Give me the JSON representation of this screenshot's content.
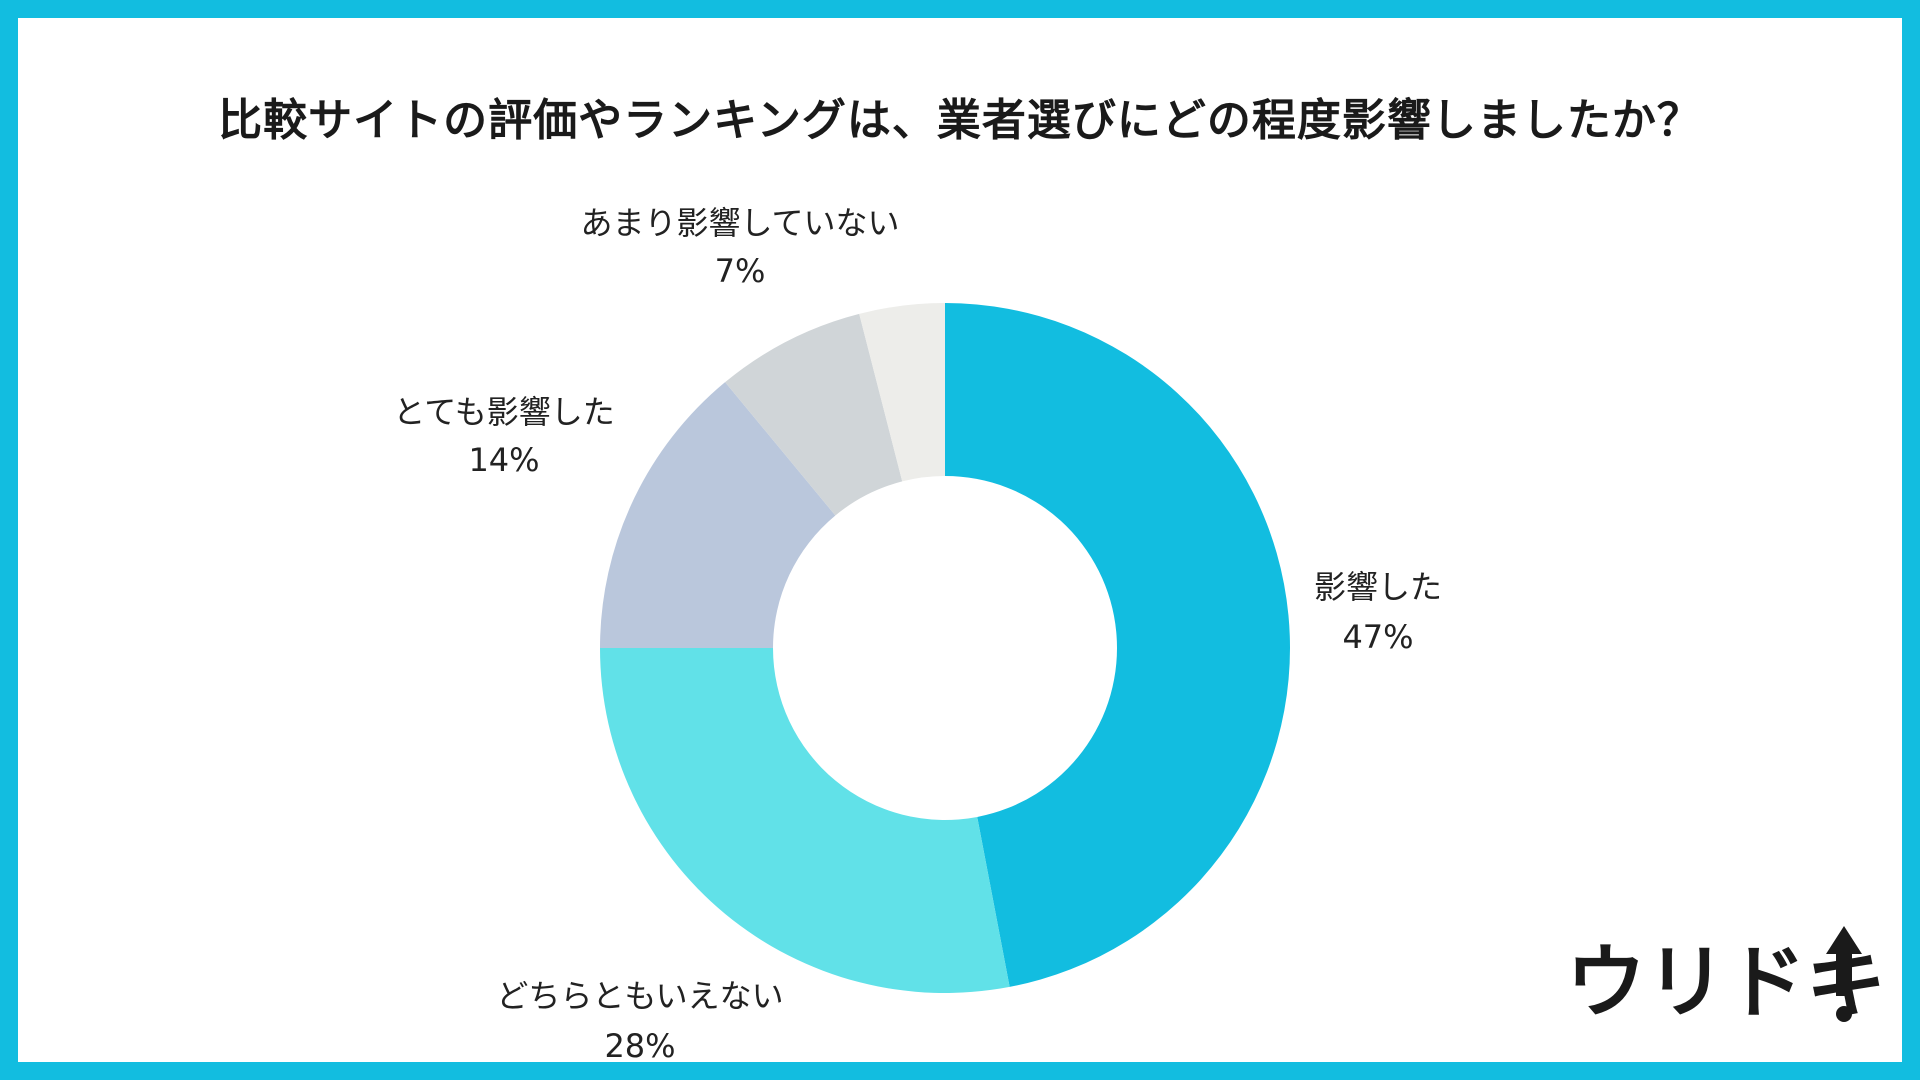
{
  "title": "比較サイトの評価やランキングは、業者選びにどの程度影響しましたか？",
  "chart_data": {
    "type": "pie",
    "donut": true,
    "title": "比較サイトの評価やランキングは、業者選びにどの程度影響しましたか？",
    "slices": [
      {
        "label": "影響した",
        "value": 47,
        "pct_text": "47%",
        "color": "#12bde0"
      },
      {
        "label": "どちらともいえない",
        "value": 28,
        "pct_text": "28%",
        "color": "#61e1e8"
      },
      {
        "label": "とても影響した",
        "value": 14,
        "pct_text": "14%",
        "color": "#bac7dc"
      },
      {
        "label": "あまり影響していない",
        "value": 7,
        "pct_text": "7%",
        "color": "#d0d5d8"
      },
      {
        "label": "",
        "value": 4,
        "pct_text": "",
        "color": "#ededea"
      }
    ],
    "start_angle_deg": 0,
    "direction": "clockwise",
    "legend": "none"
  },
  "logo": {
    "text": "ウリドキ",
    "accent": "#1a1a1a"
  },
  "colors": {
    "frame": "#12bde0",
    "background": "#ffffff"
  }
}
